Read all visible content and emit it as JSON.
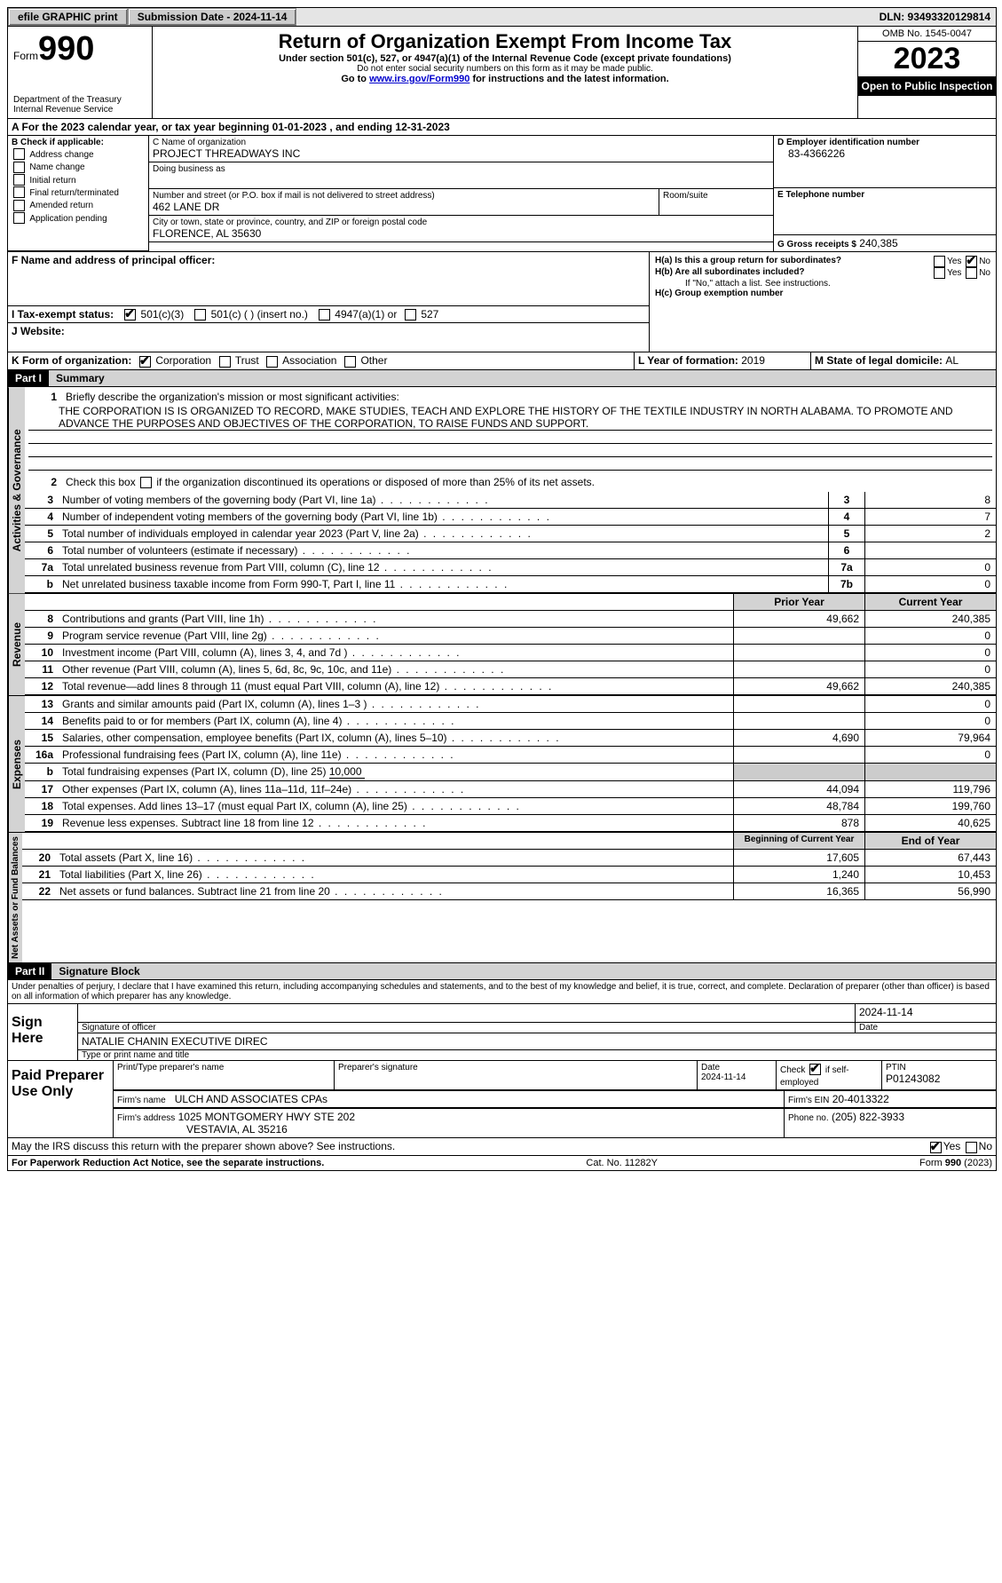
{
  "topbar": {
    "efile": "efile GRAPHIC print",
    "sub_label": "Submission Date - 2024-11-14",
    "dln": "DLN: 93493320129814"
  },
  "header": {
    "form_word": "Form",
    "form_num": "990",
    "dept": "Department of the Treasury",
    "irs": "Internal Revenue Service",
    "title": "Return of Organization Exempt From Income Tax",
    "sub1": "Under section 501(c), 527, or 4947(a)(1) of the Internal Revenue Code (except private foundations)",
    "sub2": "Do not enter social security numbers on this form as it may be made public.",
    "sub3_a": "Go to ",
    "sub3_link": "www.irs.gov/Form990",
    "sub3_b": " for instructions and the latest information.",
    "omb": "OMB No. 1545-0047",
    "year": "2023",
    "inspect": "Open to Public Inspection"
  },
  "period": {
    "a": "A For the 2023 calendar year, or tax year beginning ",
    "begin": "01-01-2023",
    "mid": " , and ending ",
    "end": "12-31-2023"
  },
  "boxB": {
    "label": "B Check if applicable:",
    "opts": [
      "Address change",
      "Name change",
      "Initial return",
      "Final return/terminated",
      "Amended return",
      "Application pending"
    ]
  },
  "boxC": {
    "name_lbl": "C Name of organization",
    "name": "PROJECT THREADWAYS INC",
    "dba_lbl": "Doing business as",
    "street_lbl": "Number and street (or P.O. box if mail is not delivered to street address)",
    "street": "462 LANE DR",
    "room_lbl": "Room/suite",
    "city_lbl": "City or town, state or province, country, and ZIP or foreign postal code",
    "city": "FLORENCE, AL  35630"
  },
  "boxD": {
    "lbl": "D Employer identification number",
    "val": "83-4366226"
  },
  "boxE": {
    "lbl": "E Telephone number"
  },
  "boxG": {
    "lbl": "G Gross receipts $",
    "val": "240,385"
  },
  "boxF": {
    "lbl": "F  Name and address of principal officer:"
  },
  "boxH": {
    "a": "H(a)  Is this a group return for subordinates?",
    "b": "H(b)  Are all subordinates included?",
    "b_note": "If \"No,\" attach a list. See instructions.",
    "c": "H(c)  Group exemption number"
  },
  "yes": "Yes",
  "no": "No",
  "boxI": {
    "lbl": "I     Tax-exempt status:",
    "o1": "501(c)(3)",
    "o2": "501(c) (  ) (insert no.)",
    "o3": "4947(a)(1) or",
    "o4": "527"
  },
  "boxJ": {
    "lbl": "J    Website:"
  },
  "boxK": {
    "lbl": "K Form of organization:",
    "o1": "Corporation",
    "o2": "Trust",
    "o3": "Association",
    "o4": "Other"
  },
  "boxL": {
    "lbl": "L Year of formation: ",
    "val": "2019"
  },
  "boxM": {
    "lbl": "M State of legal domicile: ",
    "val": "AL"
  },
  "part1": {
    "hdr": "Part I",
    "title": "Summary"
  },
  "tabs": {
    "ag": "Activities & Governance",
    "rev": "Revenue",
    "exp": "Expenses",
    "na": "Net Assets or Fund Balances"
  },
  "l1": {
    "text": "Briefly describe the organization's mission or most significant activities:",
    "val": "THE CORPORATION IS IS ORGANIZED TO RECORD, MAKE STUDIES, TEACH AND EXPLORE THE HISTORY OF THE TEXTILE INDUSTRY IN NORTH ALABAMA. TO PROMOTE AND ADVANCE THE PURPOSES AND OBJECTIVES OF THE CORPORATION, TO RAISE FUNDS AND SUPPORT."
  },
  "l2": "Check this box          if the organization discontinued its operations or disposed of more than 25% of its net assets.",
  "lines_ag": [
    {
      "n": "3",
      "t": "Number of voting members of the governing body (Part VI, line 1a)",
      "box": "3",
      "v": "8"
    },
    {
      "n": "4",
      "t": "Number of independent voting members of the governing body (Part VI, line 1b)",
      "box": "4",
      "v": "7"
    },
    {
      "n": "5",
      "t": "Total number of individuals employed in calendar year 2023 (Part V, line 2a)",
      "box": "5",
      "v": "2"
    },
    {
      "n": "6",
      "t": "Total number of volunteers (estimate if necessary)",
      "box": "6",
      "v": ""
    },
    {
      "n": "7a",
      "t": "Total unrelated business revenue from Part VIII, column (C), line 12",
      "box": "7a",
      "v": "0"
    },
    {
      "n": "b",
      "t": "Net unrelated business taxable income from Form 990-T, Part I, line 11",
      "box": "7b",
      "v": "0"
    }
  ],
  "col_prior": "Prior Year",
  "col_curr": "Current Year",
  "lines_rev": [
    {
      "n": "8",
      "t": "Contributions and grants (Part VIII, line 1h)",
      "p": "49,662",
      "c": "240,385"
    },
    {
      "n": "9",
      "t": "Program service revenue (Part VIII, line 2g)",
      "p": "",
      "c": "0"
    },
    {
      "n": "10",
      "t": "Investment income (Part VIII, column (A), lines 3, 4, and 7d )",
      "p": "",
      "c": "0"
    },
    {
      "n": "11",
      "t": "Other revenue (Part VIII, column (A), lines 5, 6d, 8c, 9c, 10c, and 11e)",
      "p": "",
      "c": "0"
    },
    {
      "n": "12",
      "t": "Total revenue—add lines 8 through 11 (must equal Part VIII, column (A), line 12)",
      "p": "49,662",
      "c": "240,385"
    }
  ],
  "lines_exp": [
    {
      "n": "13",
      "t": "Grants and similar amounts paid (Part IX, column (A), lines 1–3 )",
      "p": "",
      "c": "0"
    },
    {
      "n": "14",
      "t": "Benefits paid to or for members (Part IX, column (A), line 4)",
      "p": "",
      "c": "0"
    },
    {
      "n": "15",
      "t": "Salaries, other compensation, employee benefits (Part IX, column (A), lines 5–10)",
      "p": "4,690",
      "c": "79,964"
    },
    {
      "n": "16a",
      "t": "Professional fundraising fees (Part IX, column (A), line 11e)",
      "p": "",
      "c": "0"
    }
  ],
  "l16b": {
    "n": "b",
    "t": "Total fundraising expenses (Part IX, column (D), line 25) ",
    "u": "10,000"
  },
  "lines_exp2": [
    {
      "n": "17",
      "t": "Other expenses (Part IX, column (A), lines 11a–11d, 11f–24e)",
      "p": "44,094",
      "c": "119,796"
    },
    {
      "n": "18",
      "t": "Total expenses. Add lines 13–17 (must equal Part IX, column (A), line 25)",
      "p": "48,784",
      "c": "199,760"
    },
    {
      "n": "19",
      "t": "Revenue less expenses. Subtract line 18 from line 12",
      "p": "878",
      "c": "40,625"
    }
  ],
  "col_boy": "Beginning of Current Year",
  "col_eoy": "End of Year",
  "lines_na": [
    {
      "n": "20",
      "t": "Total assets (Part X, line 16)",
      "p": "17,605",
      "c": "67,443"
    },
    {
      "n": "21",
      "t": "Total liabilities (Part X, line 26)",
      "p": "1,240",
      "c": "10,453"
    },
    {
      "n": "22",
      "t": "Net assets or fund balances. Subtract line 21 from line 20",
      "p": "16,365",
      "c": "56,990"
    }
  ],
  "part2": {
    "hdr": "Part II",
    "title": "Signature Block"
  },
  "perjury": "Under penalties of perjury, I declare that I have examined this return, including accompanying schedules and statements, and to the best of my knowledge and belief, it is true, correct, and complete. Declaration of preparer (other than officer) is based on all information of which preparer has any knowledge.",
  "sign": {
    "here": "Sign Here",
    "sig_lbl": "Signature of officer",
    "date_lbl": "Date",
    "date": "2024-11-14",
    "name": "NATALIE CHANIN  EXECUTIVE DIREC",
    "name_lbl": "Type or print name and title"
  },
  "paid": {
    "title": "Paid Preparer Use Only",
    "pname_lbl": "Print/Type preparer's name",
    "psig_lbl": "Preparer's signature",
    "pdate_lbl": "Date",
    "pdate": "2024-11-14",
    "check_lbl": "Check         if self-employed",
    "ptin_lbl": "PTIN",
    "ptin": "P01243082",
    "firm_lbl": "Firm's name",
    "firm": "ULCH AND ASSOCIATES CPAs",
    "ein_lbl": "Firm's EIN",
    "ein": "20-4013322",
    "addr_lbl": "Firm's address",
    "addr1": "1025 MONTGOMERY HWY STE 202",
    "addr2": "VESTAVIA, AL  35216",
    "phone_lbl": "Phone no.",
    "phone": "(205) 822-3933"
  },
  "discuss": "May the IRS discuss this return with the preparer shown above? See instructions.",
  "footer": {
    "pra": "For Paperwork Reduction Act Notice, see the separate instructions.",
    "cat": "Cat. No. 11282Y",
    "form": "Form 990 (2023)"
  }
}
